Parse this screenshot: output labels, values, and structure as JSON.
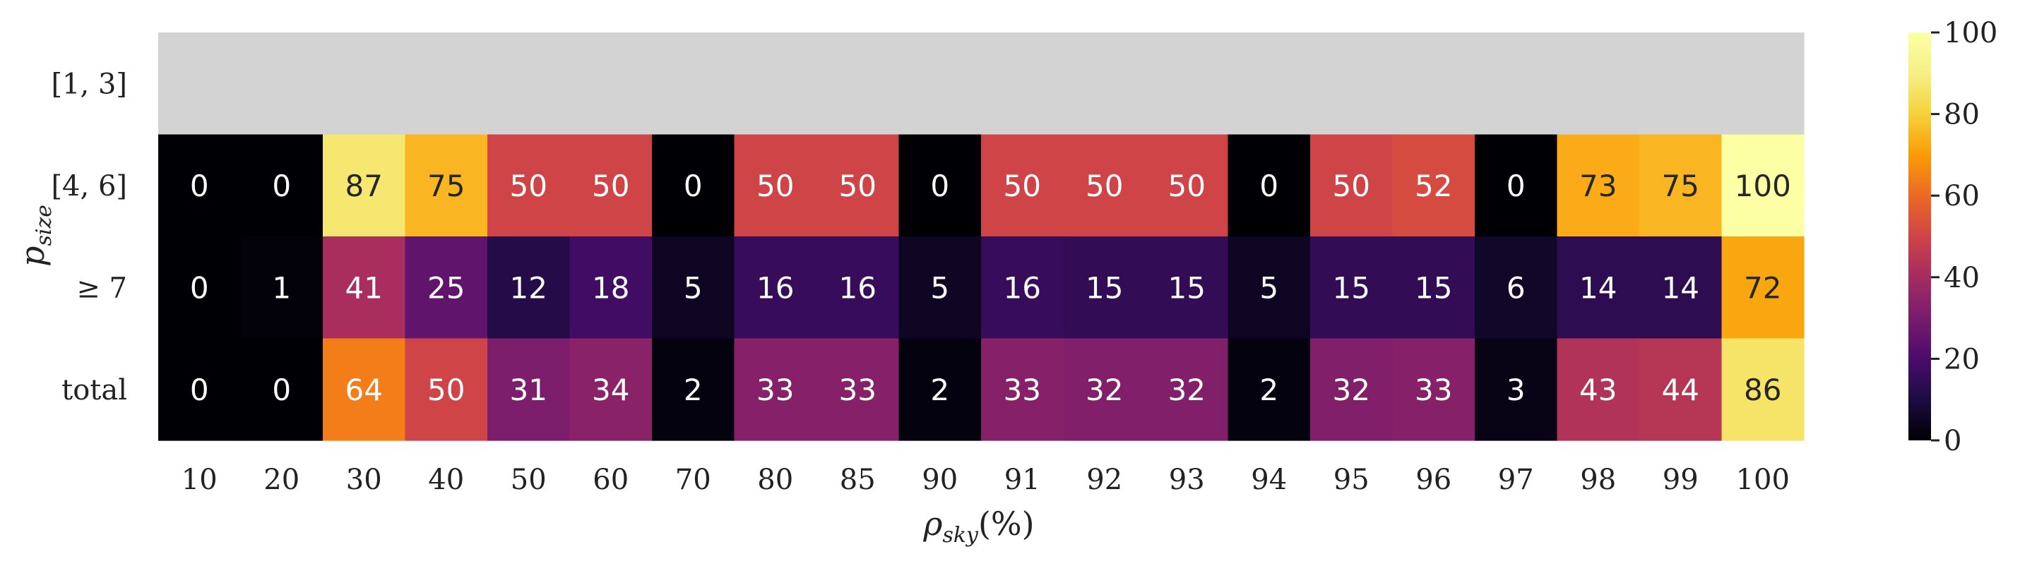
{
  "chart_data": {
    "type": "heatmap",
    "title": "",
    "xlabel": "ρ_sky(%)",
    "ylabel": "p_size",
    "x_categories": [
      "10",
      "20",
      "30",
      "40",
      "50",
      "60",
      "70",
      "80",
      "85",
      "90",
      "91",
      "92",
      "93",
      "94",
      "95",
      "96",
      "97",
      "98",
      "99",
      "100"
    ],
    "y_categories": [
      "[1, 3]",
      "[4, 6]",
      "≥ 7",
      "total"
    ],
    "values": [
      [
        null,
        null,
        null,
        null,
        null,
        null,
        null,
        null,
        null,
        null,
        null,
        null,
        null,
        null,
        null,
        null,
        null,
        null,
        null,
        null
      ],
      [
        0,
        0,
        87,
        75,
        50,
        50,
        0,
        50,
        50,
        0,
        50,
        50,
        50,
        0,
        50,
        52,
        0,
        73,
        75,
        100
      ],
      [
        0,
        1,
        41,
        25,
        12,
        18,
        5,
        16,
        16,
        5,
        16,
        15,
        15,
        5,
        15,
        15,
        6,
        14,
        14,
        72
      ],
      [
        0,
        0,
        64,
        50,
        31,
        34,
        2,
        33,
        33,
        2,
        33,
        32,
        32,
        2,
        32,
        33,
        3,
        43,
        44,
        86
      ]
    ],
    "missing_color": "#d3d3d3",
    "colormap": "inferno",
    "colorbar": {
      "min": 0,
      "max": 100,
      "ticks": [
        "0",
        "20",
        "40",
        "60",
        "80",
        "100"
      ],
      "placement": "right"
    },
    "grid": false,
    "legend": "none"
  }
}
